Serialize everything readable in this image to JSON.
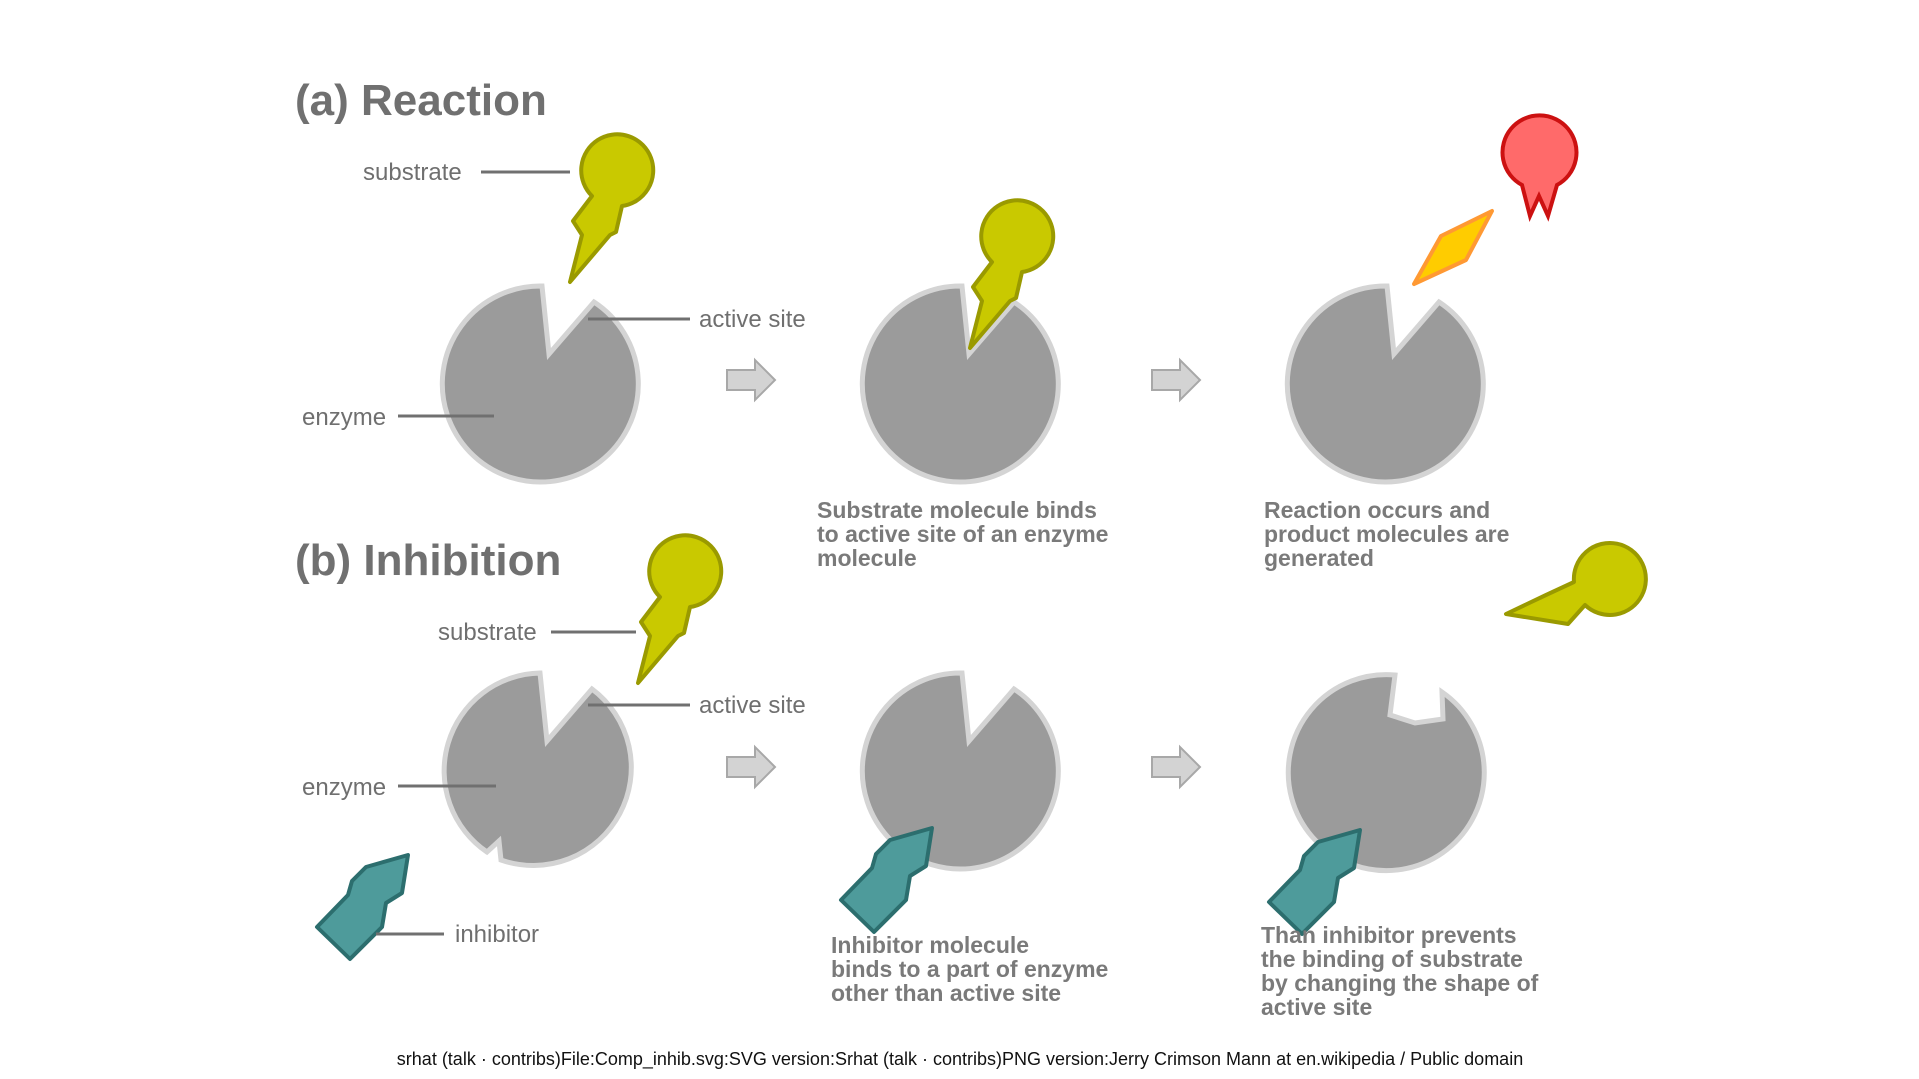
{
  "section_a": {
    "title": "(a) Reaction",
    "labels": {
      "substrate": "substrate",
      "active_site": "active site",
      "enzyme": "enzyme"
    },
    "caption_binding": [
      "Substrate molecule binds",
      "to active site of an enzyme",
      "molecule"
    ],
    "caption_reaction": [
      "Reaction occurs and",
      "product molecules are",
      "generated"
    ]
  },
  "section_b": {
    "title": "(b) Inhibition",
    "labels": {
      "substrate": "substrate",
      "active_site": "active site",
      "enzyme": "enzyme",
      "inhibitor": "inhibitor"
    },
    "caption_binding": [
      "Inhibitor molecule",
      "binds to a part of enzyme",
      "other than active site"
    ],
    "caption_result": [
      "Than inhibitor prevents",
      "the binding of substrate",
      "by changing the shape of",
      "active site"
    ]
  },
  "credit": "srhat (talk · contribs)File:Comp_inhib.svg:SVG version:Srhat (talk · contribs)PNG version:Jerry Crimson Mann at en.wikipedia / Public domain",
  "colors": {
    "enzyme": "#9b9b9b",
    "substrate": "#c9c900",
    "inhibitor": "#4e9b9b",
    "product_red": "#ff6a6a",
    "product_orange": "#ffcc00"
  }
}
